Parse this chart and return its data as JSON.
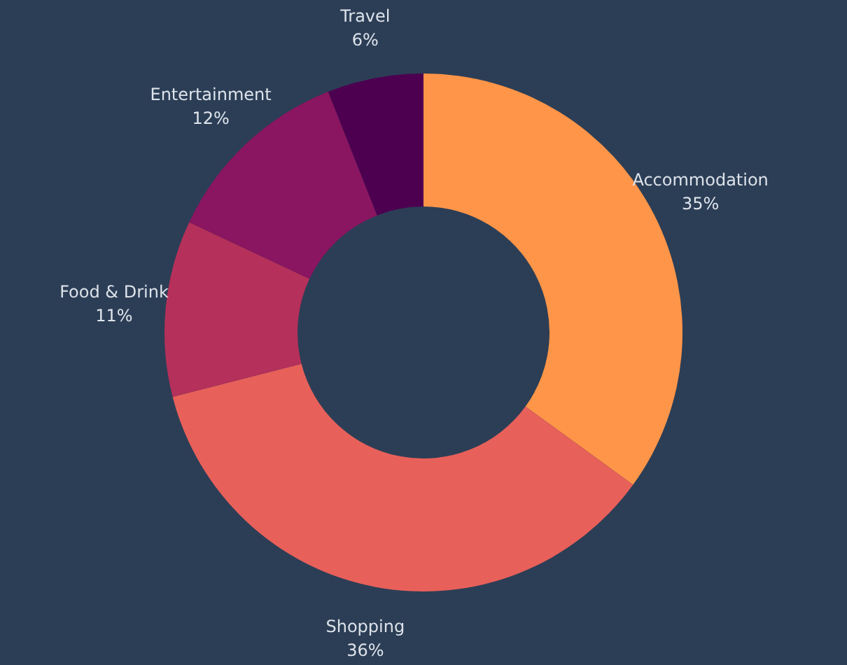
{
  "chart_data": {
    "type": "donut",
    "categories": [
      "Accommodation",
      "Shopping",
      "Food & Drink",
      "Entertainment",
      "Travel"
    ],
    "values": [
      35,
      36,
      11,
      12,
      6
    ],
    "value_labels": [
      "35%",
      "36%",
      "11%",
      "12%",
      "6%"
    ],
    "colors": [
      "#ff9548",
      "#e8605a",
      "#b5305a",
      "#8a1560",
      "#4d0050"
    ]
  }
}
